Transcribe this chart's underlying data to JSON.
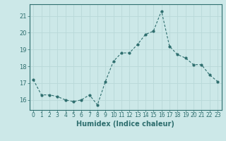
{
  "x": [
    0,
    1,
    2,
    3,
    4,
    5,
    6,
    7,
    8,
    9,
    10,
    11,
    12,
    13,
    14,
    15,
    16,
    17,
    18,
    19,
    20,
    21,
    22,
    23
  ],
  "y": [
    17.2,
    16.3,
    16.3,
    16.2,
    16.0,
    15.9,
    16.0,
    16.3,
    15.7,
    17.1,
    18.3,
    18.8,
    18.8,
    19.3,
    19.9,
    20.1,
    21.3,
    19.2,
    18.7,
    18.5,
    18.1,
    18.1,
    17.5,
    17.1
  ],
  "title": "",
  "xlabel": "Humidex (Indice chaleur)",
  "ylabel": "",
  "ylim": [
    15.4,
    21.7
  ],
  "xlim": [
    -0.5,
    23.5
  ],
  "yticks": [
    16,
    17,
    18,
    19,
    20,
    21
  ],
  "xticks": [
    0,
    1,
    2,
    3,
    4,
    5,
    6,
    7,
    8,
    9,
    10,
    11,
    12,
    13,
    14,
    15,
    16,
    17,
    18,
    19,
    20,
    21,
    22,
    23
  ],
  "xtick_labels": [
    "0",
    "1",
    "2",
    "3",
    "4",
    "5",
    "6",
    "7",
    "8",
    "9",
    "10",
    "11",
    "12",
    "13",
    "14",
    "15",
    "16",
    "17",
    "18",
    "19",
    "20",
    "21",
    "22",
    "23"
  ],
  "line_color": "#2e6e6e",
  "marker_color": "#2e6e6e",
  "bg_color": "#cce8e8",
  "grid_color": "#b8d8d8",
  "axis_color": "#2e6e6e",
  "label_fontsize": 5.5,
  "xlabel_fontsize": 7.0
}
